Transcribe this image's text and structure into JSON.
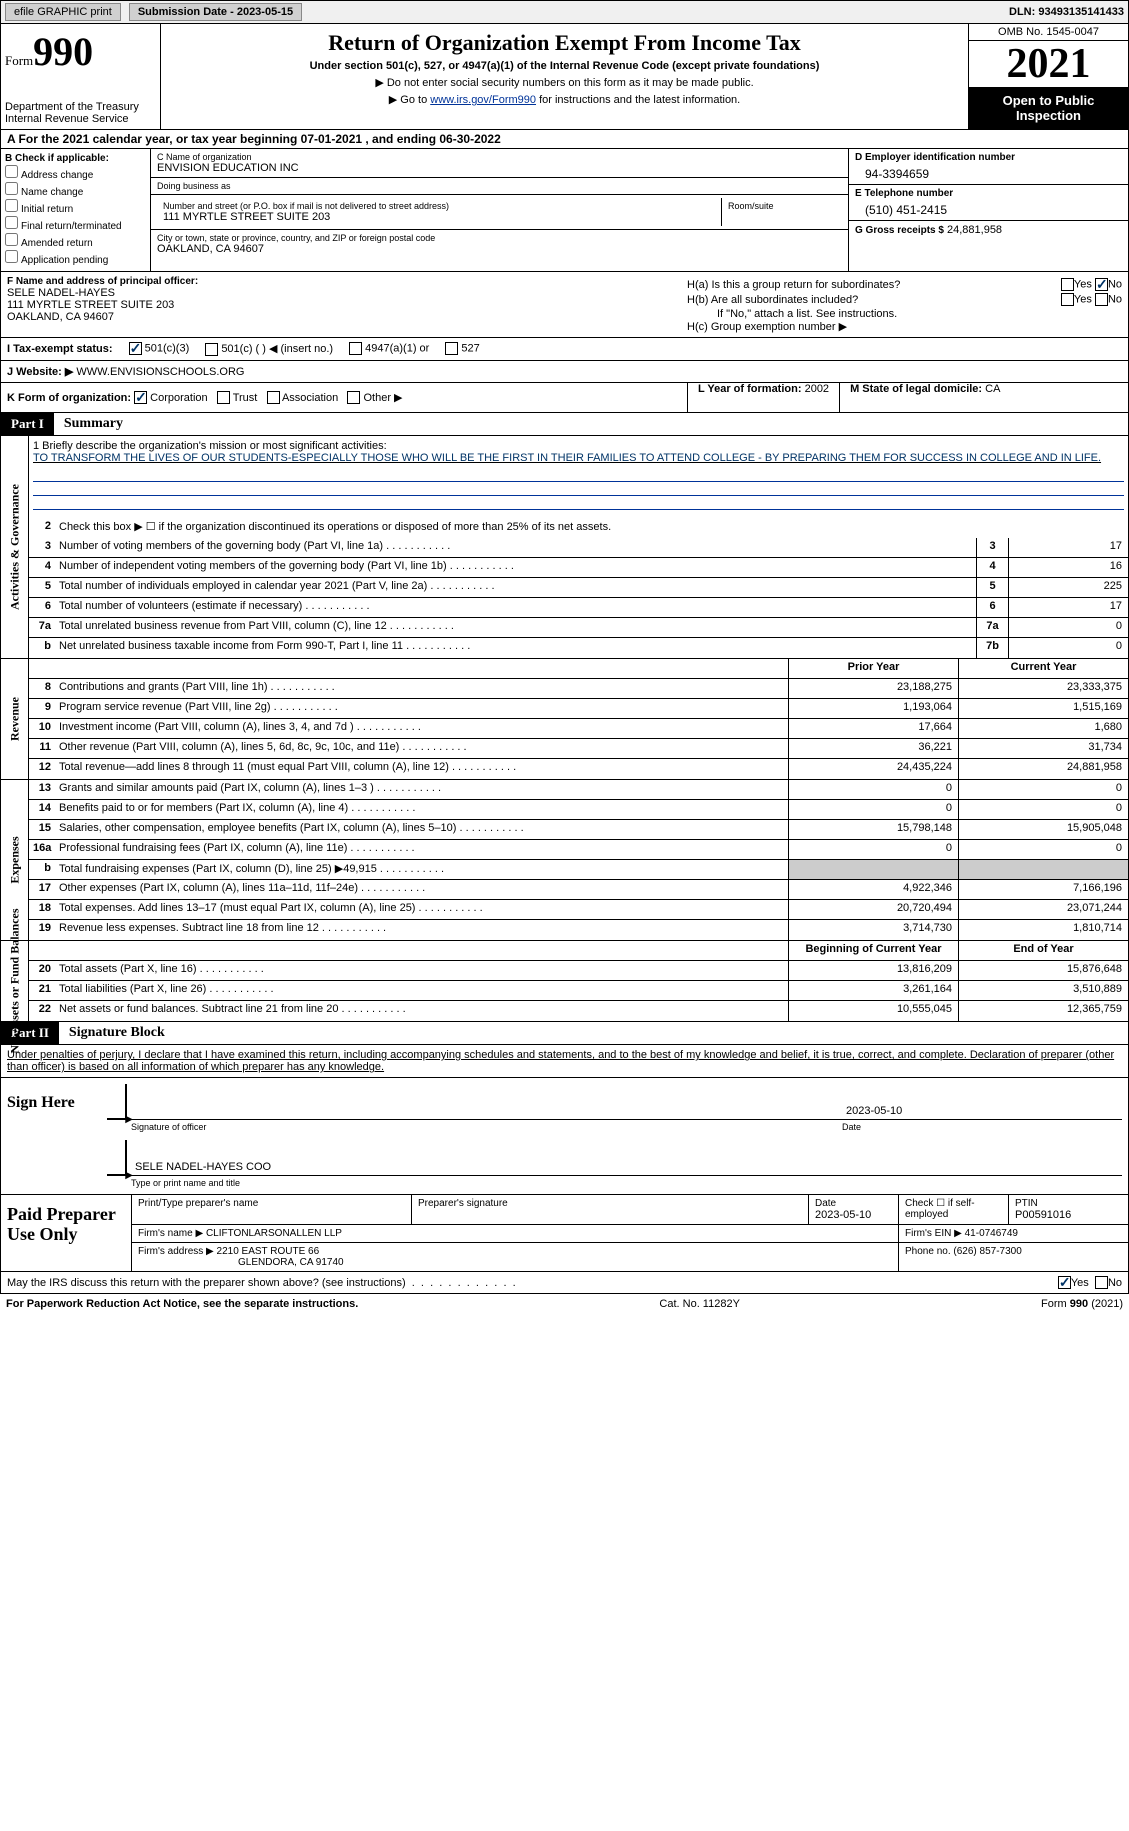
{
  "topbar": {
    "efile_btn": "efile GRAPHIC print",
    "submission_label": "Submission Date - 2023-05-15",
    "dln": "DLN: 93493135141433"
  },
  "header": {
    "form_word": "Form",
    "form_num": "990",
    "dept": "Department of the Treasury",
    "irs": "Internal Revenue Service",
    "title": "Return of Organization Exempt From Income Tax",
    "subtitle": "Under section 501(c), 527, or 4947(a)(1) of the Internal Revenue Code (except private foundations)",
    "note1": "▶ Do not enter social security numbers on this form as it may be made public.",
    "note2_pre": "▶ Go to ",
    "note2_link": "www.irs.gov/Form990",
    "note2_post": " for instructions and the latest information.",
    "omb": "OMB No. 1545-0047",
    "year": "2021",
    "open": "Open to Public Inspection"
  },
  "row_a": "A For the 2021 calendar year, or tax year beginning 07-01-2021    , and ending 06-30-2022",
  "col_b": {
    "header": "B Check if applicable:",
    "opts": [
      "Address change",
      "Name change",
      "Initial return",
      "Final return/terminated",
      "Amended return",
      "Application pending"
    ]
  },
  "col_c": {
    "name_lbl": "C Name of organization",
    "name": "ENVISION EDUCATION INC",
    "dba_lbl": "Doing business as",
    "dba": "",
    "street_lbl": "Number and street (or P.O. box if mail is not delivered to street address)",
    "street": "111 MYRTLE STREET SUITE 203",
    "room_lbl": "Room/suite",
    "room": "",
    "city_lbl": "City or town, state or province, country, and ZIP or foreign postal code",
    "city": "OAKLAND, CA  94607"
  },
  "col_d": {
    "ein_lbl": "D Employer identification number",
    "ein": "94-3394659",
    "phone_lbl": "E Telephone number",
    "phone": "(510) 451-2415",
    "gross_lbl": "G Gross receipts $",
    "gross": "24,881,958"
  },
  "section_f": {
    "lbl": "F Name and address of principal officer:",
    "name": "SELE NADEL-HAYES",
    "addr1": "111 MYRTLE STREET SUITE 203",
    "addr2": "OAKLAND, CA  94607"
  },
  "section_h": {
    "ha_lbl": "H(a)  Is this a group return for subordinates?",
    "hb_lbl": "H(b)  Are all subordinates included?",
    "hb_note": "If \"No,\" attach a list. See instructions.",
    "hc_lbl": "H(c)  Group exemption number ▶"
  },
  "row_i": {
    "lbl": "I    Tax-exempt status:",
    "opt1": "501(c)(3)",
    "opt2": "501(c) (  ) ◀ (insert no.)",
    "opt3": "4947(a)(1) or",
    "opt4": "527"
  },
  "row_j": {
    "lbl": "J   Website: ▶",
    "val": "WWW.ENVISIONSCHOOLS.ORG"
  },
  "row_k": {
    "lbl": "K Form of organization:",
    "opts": [
      "Corporation",
      "Trust",
      "Association",
      "Other ▶"
    ],
    "l_lbl": "L Year of formation:",
    "l_val": "2002",
    "m_lbl": "M State of legal domicile:",
    "m_val": "CA"
  },
  "part1": {
    "num": "Part I",
    "title": "Summary"
  },
  "mission": {
    "line1_lbl": "1   Briefly describe the organization's mission or most significant activities:",
    "text": "TO TRANSFORM THE LIVES OF OUR STUDENTS-ESPECIALLY THOSE WHO WILL BE THE FIRST IN THEIR FAMILIES TO ATTEND COLLEGE - BY PREPARING THEM FOR SUCCESS IN COLLEGE AND IN LIFE."
  },
  "governance_lines": [
    {
      "n": "2",
      "d": "Check this box ▶ ☐ if the organization discontinued its operations or disposed of more than 25% of its net assets."
    },
    {
      "n": "3",
      "d": "Number of voting members of the governing body (Part VI, line 1a)",
      "box": "3",
      "v": "17"
    },
    {
      "n": "4",
      "d": "Number of independent voting members of the governing body (Part VI, line 1b)",
      "box": "4",
      "v": "16"
    },
    {
      "n": "5",
      "d": "Total number of individuals employed in calendar year 2021 (Part V, line 2a)",
      "box": "5",
      "v": "225"
    },
    {
      "n": "6",
      "d": "Total number of volunteers (estimate if necessary)",
      "box": "6",
      "v": "17"
    },
    {
      "n": "7a",
      "d": "Total unrelated business revenue from Part VIII, column (C), line 12",
      "box": "7a",
      "v": "0"
    },
    {
      "n": "b",
      "d": "Net unrelated business taxable income from Form 990-T, Part I, line 11",
      "box": "7b",
      "v": "0"
    }
  ],
  "pycy_hdr": {
    "prior": "Prior Year",
    "curr": "Current Year"
  },
  "revenue_lines": [
    {
      "n": "8",
      "d": "Contributions and grants (Part VIII, line 1h)",
      "p": "23,188,275",
      "c": "23,333,375"
    },
    {
      "n": "9",
      "d": "Program service revenue (Part VIII, line 2g)",
      "p": "1,193,064",
      "c": "1,515,169"
    },
    {
      "n": "10",
      "d": "Investment income (Part VIII, column (A), lines 3, 4, and 7d )",
      "p": "17,664",
      "c": "1,680"
    },
    {
      "n": "11",
      "d": "Other revenue (Part VIII, column (A), lines 5, 6d, 8c, 9c, 10c, and 11e)",
      "p": "36,221",
      "c": "31,734"
    },
    {
      "n": "12",
      "d": "Total revenue—add lines 8 through 11 (must equal Part VIII, column (A), line 12)",
      "p": "24,435,224",
      "c": "24,881,958"
    }
  ],
  "expense_lines": [
    {
      "n": "13",
      "d": "Grants and similar amounts paid (Part IX, column (A), lines 1–3 )",
      "p": "0",
      "c": "0"
    },
    {
      "n": "14",
      "d": "Benefits paid to or for members (Part IX, column (A), line 4)",
      "p": "0",
      "c": "0"
    },
    {
      "n": "15",
      "d": "Salaries, other compensation, employee benefits (Part IX, column (A), lines 5–10)",
      "p": "15,798,148",
      "c": "15,905,048"
    },
    {
      "n": "16a",
      "d": "Professional fundraising fees (Part IX, column (A), line 11e)",
      "p": "0",
      "c": "0"
    },
    {
      "n": "b",
      "d": "Total fundraising expenses (Part IX, column (D), line 25) ▶49,915",
      "p": "gray",
      "c": "gray"
    },
    {
      "n": "17",
      "d": "Other expenses (Part IX, column (A), lines 11a–11d, 11f–24e)",
      "p": "4,922,346",
      "c": "7,166,196"
    },
    {
      "n": "18",
      "d": "Total expenses. Add lines 13–17 (must equal Part IX, column (A), line 25)",
      "p": "20,720,494",
      "c": "23,071,244"
    },
    {
      "n": "19",
      "d": "Revenue less expenses. Subtract line 18 from line 12",
      "p": "3,714,730",
      "c": "1,810,714"
    }
  ],
  "net_hdr": {
    "prior": "Beginning of Current Year",
    "curr": "End of Year"
  },
  "net_lines": [
    {
      "n": "20",
      "d": "Total assets (Part X, line 16)",
      "p": "13,816,209",
      "c": "15,876,648"
    },
    {
      "n": "21",
      "d": "Total liabilities (Part X, line 26)",
      "p": "3,261,164",
      "c": "3,510,889"
    },
    {
      "n": "22",
      "d": "Net assets or fund balances. Subtract line 21 from line 20",
      "p": "10,555,045",
      "c": "12,365,759"
    }
  ],
  "part2": {
    "num": "Part II",
    "title": "Signature Block"
  },
  "sig_text": "Under penalties of perjury, I declare that I have examined this return, including accompanying schedules and statements, and to the best of my knowledge and belief, it is true, correct, and complete. Declaration of preparer (other than officer) is based on all information of which preparer has any knowledge.",
  "sign": {
    "here": "Sign Here",
    "sig_lbl": "Signature of officer",
    "date_lbl": "Date",
    "date_val": "2023-05-10",
    "name_val": "SELE NADEL-HAYES  COO",
    "name_lbl": "Type or print name and title"
  },
  "prep": {
    "title": "Paid Preparer Use Only",
    "r1": {
      "c1_lbl": "Print/Type preparer's name",
      "c1": "",
      "c2_lbl": "Preparer's signature",
      "c2": "",
      "c3_lbl": "Date",
      "c3": "2023-05-10",
      "c4_lbl": "Check ☐ if self-employed",
      "c5_lbl": "PTIN",
      "c5": "P00591016"
    },
    "r2": {
      "lbl": "Firm's name      ▶",
      "val": "CLIFTONLARSONALLEN LLP",
      "ein_lbl": "Firm's EIN ▶",
      "ein": "41-0746749"
    },
    "r3": {
      "lbl": "Firm's address ▶",
      "val1": "2210 EAST ROUTE 66",
      "val2": "GLENDORA, CA  91740",
      "ph_lbl": "Phone no.",
      "ph": "(626) 857-7300"
    }
  },
  "irs_discuss": "May the IRS discuss this return with the preparer shown above? (see instructions)",
  "footer": {
    "left": "For Paperwork Reduction Act Notice, see the separate instructions.",
    "mid": "Cat. No. 11282Y",
    "right": "Form 990 (2021)"
  },
  "vlabels": {
    "gov": "Activities & Governance",
    "rev": "Revenue",
    "exp": "Expenses",
    "net": "Net Assets or Fund Balances"
  },
  "yes": "Yes",
  "no": "No"
}
